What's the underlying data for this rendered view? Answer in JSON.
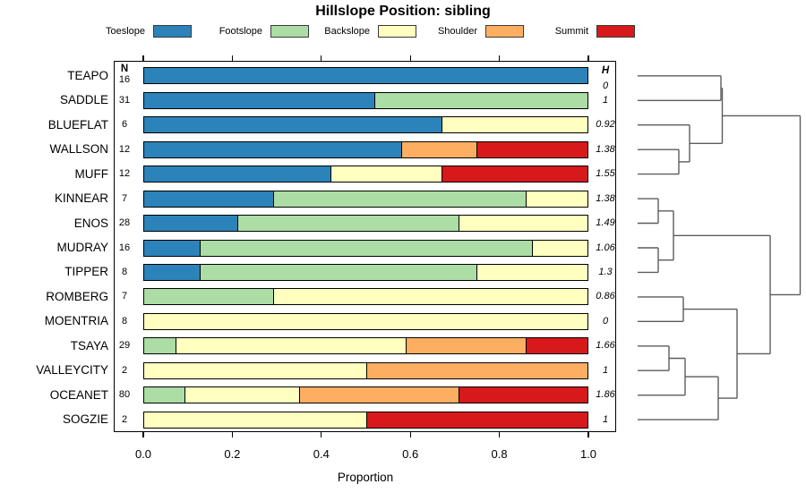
{
  "title": "Hillslope Position: sibling",
  "legend": {
    "items": [
      {
        "label": "Toeslope",
        "color": "#2b83ba"
      },
      {
        "label": "Footslope",
        "color": "#abdda4"
      },
      {
        "label": "Backslope",
        "color": "#ffffbf"
      },
      {
        "label": "Shoulder",
        "color": "#fdae61"
      },
      {
        "label": "Summit",
        "color": "#d7191c"
      }
    ]
  },
  "columns": {
    "n_header": "N",
    "h_header": "H"
  },
  "axis": {
    "xlabel": "Proportion",
    "tick_labels": [
      "0.0",
      "0.2",
      "0.4",
      "0.6",
      "0.8",
      "1.0"
    ]
  },
  "chart_data": {
    "type": "bar",
    "stacked": true,
    "orientation": "horizontal",
    "title": "Hillslope Position: sibling",
    "xlabel": "Proportion",
    "xlim": [
      0,
      1
    ],
    "xticks": [
      0,
      0.2,
      0.4,
      0.6,
      0.8,
      1.0
    ],
    "grid": false,
    "legend_position": "top",
    "series_names": [
      "Toeslope",
      "Footslope",
      "Backslope",
      "Shoulder",
      "Summit"
    ],
    "series_colors": [
      "#2b83ba",
      "#abdda4",
      "#ffffbf",
      "#fdae61",
      "#d7191c"
    ],
    "rows": [
      {
        "label": "TEAPO",
        "n": 16,
        "h": "0",
        "values": [
          1,
          0,
          0,
          0,
          0
        ]
      },
      {
        "label": "SADDLE",
        "n": 31,
        "h": "1",
        "values": [
          0.52,
          0.48,
          0,
          0,
          0
        ]
      },
      {
        "label": "BLUEFLAT",
        "n": 6,
        "h": "0.92",
        "values": [
          0.67,
          0,
          0.33,
          0,
          0
        ]
      },
      {
        "label": "WALLSON",
        "n": 12,
        "h": "1.38",
        "values": [
          0.58,
          0,
          0,
          0.17,
          0.25
        ]
      },
      {
        "label": "MUFF",
        "n": 12,
        "h": "1.55",
        "values": [
          0.42,
          0,
          0.25,
          0,
          0.33
        ]
      },
      {
        "label": "KINNEAR",
        "n": 7,
        "h": "1.38",
        "values": [
          0.29,
          0.57,
          0.14,
          0,
          0
        ]
      },
      {
        "label": "ENOS",
        "n": 28,
        "h": "1.49",
        "values": [
          0.21,
          0.5,
          0.29,
          0,
          0
        ]
      },
      {
        "label": "MUDRAY",
        "n": 16,
        "h": "1.06",
        "values": [
          0.125,
          0.75,
          0.125,
          0,
          0
        ]
      },
      {
        "label": "TIPPER",
        "n": 8,
        "h": "1.3",
        "values": [
          0.125,
          0.625,
          0.25,
          0,
          0
        ]
      },
      {
        "label": "ROMBERG",
        "n": 7,
        "h": "0.86",
        "values": [
          0,
          0.29,
          0.71,
          0,
          0
        ]
      },
      {
        "label": "MOENTRIA",
        "n": 8,
        "h": "0",
        "values": [
          0,
          0,
          1,
          0,
          0
        ]
      },
      {
        "label": "TSAYA",
        "n": 29,
        "h": "1.66",
        "values": [
          0,
          0.07,
          0.52,
          0.27,
          0.14
        ]
      },
      {
        "label": "VALLEYCITY",
        "n": 2,
        "h": "1",
        "values": [
          0,
          0,
          0.5,
          0.5,
          0
        ]
      },
      {
        "label": "OCEANET",
        "n": 80,
        "h": "1.86",
        "values": [
          0,
          0.09,
          0.26,
          0.36,
          0.29
        ]
      },
      {
        "label": "SOGZIE",
        "n": 2,
        "h": "1",
        "values": [
          0,
          0,
          0.5,
          0,
          0.5
        ]
      }
    ],
    "dendrogram": {
      "leaf_order": [
        "TEAPO",
        "SADDLE",
        "BLUEFLAT",
        "WALLSON",
        "MUFF",
        "KINNEAR",
        "ENOS",
        "MUDRAY",
        "TIPPER",
        "ROMBERG",
        "MOENTRIA",
        "TSAYA",
        "VALLEYCITY",
        "OCEANET",
        "SOGZIE"
      ],
      "segments": [
        [
          712,
          84.8,
          805,
          84.8
        ],
        [
          712,
          112.3,
          805,
          112.3
        ],
        [
          805,
          84.8,
          805,
          112.3
        ],
        [
          712,
          167.2,
          758,
          167.2
        ],
        [
          712,
          194.6,
          758,
          194.6
        ],
        [
          758,
          167.2,
          758,
          194.6
        ],
        [
          712,
          139.7,
          770,
          139.7
        ],
        [
          758,
          180.9,
          770,
          180.9
        ],
        [
          770,
          139.7,
          770,
          180.9
        ],
        [
          805,
          98.5,
          806.5,
          98.5
        ],
        [
          770,
          160.3,
          806.5,
          160.3
        ],
        [
          806.5,
          98.5,
          806.5,
          160.3
        ],
        [
          806.5,
          129.4,
          893.5,
          129.4
        ],
        [
          712,
          222.1,
          735,
          222.1
        ],
        [
          712,
          249.5,
          735,
          249.5
        ],
        [
          735,
          222.1,
          735,
          249.5
        ],
        [
          712,
          277,
          735,
          277
        ],
        [
          712,
          304.4,
          735,
          304.4
        ],
        [
          735,
          277,
          735,
          304.4
        ],
        [
          735,
          235.8,
          752,
          235.8
        ],
        [
          735,
          290.7,
          752,
          290.7
        ],
        [
          752,
          235.8,
          752,
          290.7
        ],
        [
          752,
          263.3,
          860,
          263.3
        ],
        [
          712,
          331.9,
          763,
          331.9
        ],
        [
          712,
          359.3,
          763,
          359.3
        ],
        [
          763,
          331.9,
          763,
          359.3
        ],
        [
          763,
          345.6,
          823,
          345.6
        ],
        [
          712,
          386.8,
          747,
          386.8
        ],
        [
          712,
          414.2,
          747,
          414.2
        ],
        [
          747,
          386.8,
          747,
          414.2
        ],
        [
          747,
          400.5,
          765,
          400.5
        ],
        [
          712,
          441.7,
          765,
          441.7
        ],
        [
          765,
          400.5,
          765,
          441.7
        ],
        [
          765,
          421.1,
          802,
          421.1
        ],
        [
          712,
          469.1,
          802,
          469.1
        ],
        [
          802,
          421.1,
          802,
          469.1
        ],
        [
          802,
          445.1,
          823,
          445.1
        ],
        [
          823,
          345.6,
          823,
          445.1
        ],
        [
          823,
          395.4,
          860,
          395.4
        ],
        [
          860,
          263.3,
          860,
          395.4
        ],
        [
          860,
          329.4,
          893.5,
          329.4
        ],
        [
          893.5,
          129.4,
          893.5,
          329.4
        ]
      ]
    }
  }
}
